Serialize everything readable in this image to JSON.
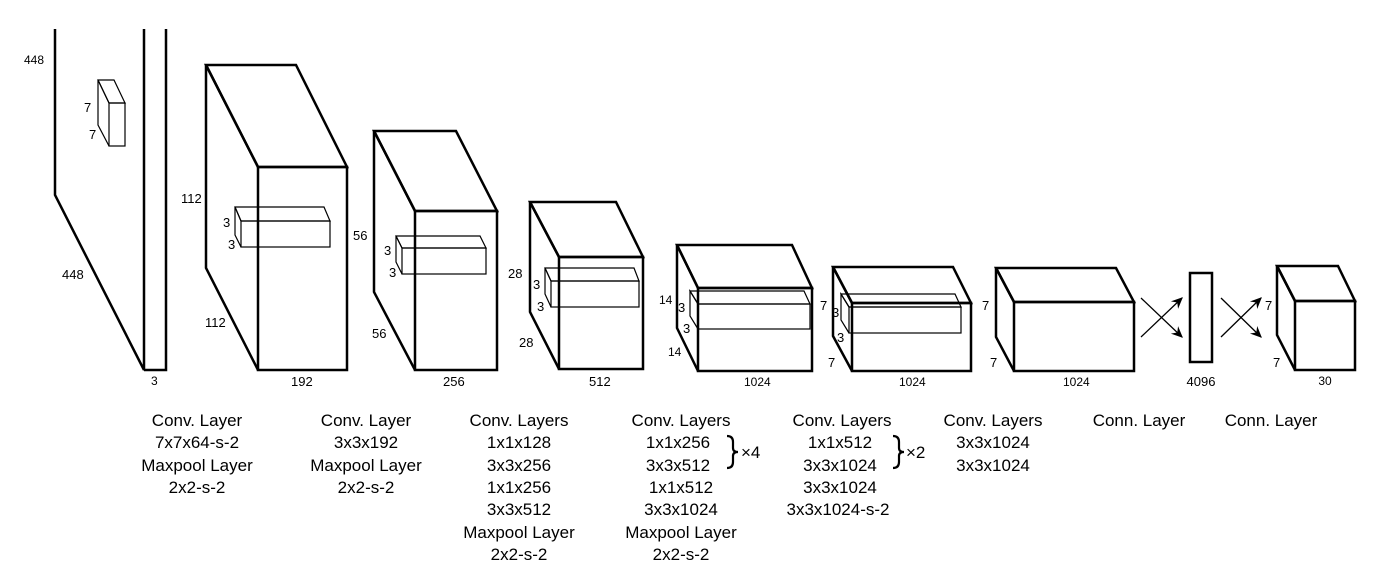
{
  "diagram": {
    "blocks": [
      {
        "dims": [
          "448",
          "448",
          "3"
        ],
        "kernel": [
          "7",
          "7"
        ]
      },
      {
        "dims": [
          "112",
          "112",
          "192"
        ],
        "kernel": [
          "3",
          "3"
        ]
      },
      {
        "dims": [
          "56",
          "56",
          "256"
        ],
        "kernel": [
          "3",
          "3"
        ]
      },
      {
        "dims": [
          "28",
          "28",
          "512"
        ],
        "kernel": [
          "3",
          "3"
        ]
      },
      {
        "dims": [
          "14",
          "14",
          "1024"
        ],
        "kernel": [
          "3",
          "3"
        ]
      },
      {
        "dims": [
          "7",
          "7",
          "1024"
        ],
        "kernel": [
          "3",
          "3"
        ]
      },
      {
        "dims": [
          "7",
          "7",
          "1024"
        ]
      },
      {
        "dims": [
          "4096"
        ]
      },
      {
        "dims": [
          "7",
          "7",
          "30"
        ]
      }
    ],
    "captions": [
      {
        "lines": [
          "Conv. Layer",
          "7x7x64-s-2",
          "Maxpool Layer",
          "2x2-s-2"
        ]
      },
      {
        "lines": [
          "Conv. Layer",
          "3x3x192",
          "Maxpool Layer",
          "2x2-s-2"
        ]
      },
      {
        "lines": [
          "Conv. Layers",
          "1x1x128",
          "3x3x256",
          "1x1x256",
          "3x3x512",
          "Maxpool Layer",
          "2x2-s-2"
        ]
      },
      {
        "lines": [
          "Conv. Layers",
          "1x1x256",
          "3x3x512",
          "1x1x512",
          "3x3x1024",
          "Maxpool Layer",
          "2x2-s-2"
        ],
        "repeat": "×4"
      },
      {
        "lines": [
          "Conv. Layers",
          "1x1x512",
          "3x3x1024",
          "3x3x1024",
          "3x3x1024-s-2"
        ],
        "repeat": "×2"
      },
      {
        "lines": [
          "Conv. Layers",
          "3x3x1024",
          "3x3x1024"
        ]
      },
      {
        "lines": [
          "Conn. Layer"
        ]
      },
      {
        "lines": [
          "Conn. Layer"
        ]
      }
    ]
  }
}
